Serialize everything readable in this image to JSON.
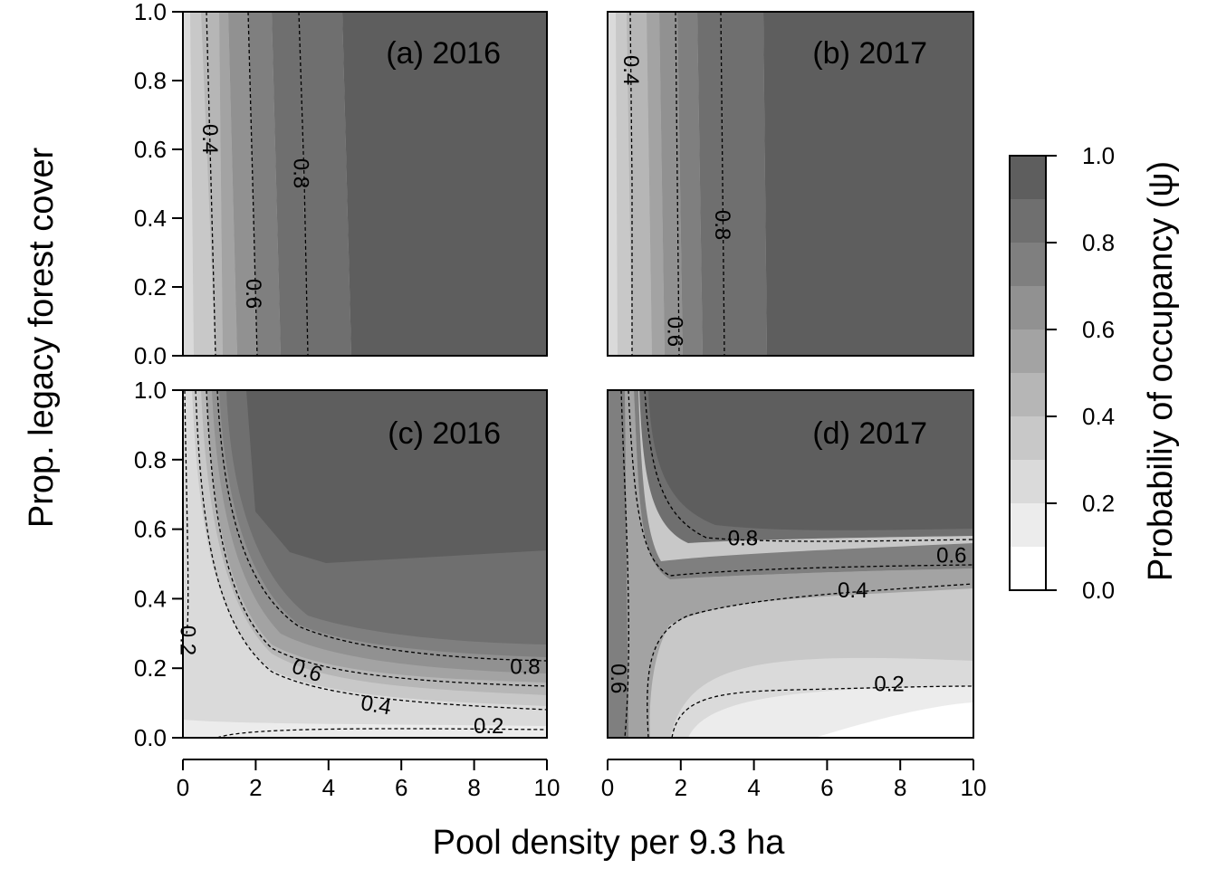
{
  "chart_data": {
    "type": "heatmap",
    "xlabel": "Pool density per 9.3 ha",
    "ylabel": "Prop. legacy forest cover",
    "xlim": [
      0,
      10
    ],
    "ylim": [
      0,
      1
    ],
    "x_ticks": [
      "0",
      "2",
      "4",
      "6",
      "8",
      "10"
    ],
    "y_ticks": [
      "0.0",
      "0.2",
      "0.4",
      "0.6",
      "0.8",
      "1.0"
    ],
    "colorbar": {
      "title": "Probabiliy of occupancy (ψ)",
      "tick_labels": [
        "0.0",
        "0.2",
        "0.4",
        "0.6",
        "0.8",
        "1.0"
      ],
      "levels": [
        0,
        0.1,
        0.2,
        0.3,
        0.4,
        0.5,
        0.6,
        0.7,
        0.8,
        0.9,
        1.0
      ],
      "colors": [
        "#ffffff",
        "#ececec",
        "#dadada",
        "#c8c8c8",
        "#b6b6b6",
        "#a3a3a3",
        "#919191",
        "#7f7f7f",
        "#6f6f6f",
        "#5e5e5e"
      ]
    },
    "panels": [
      {
        "title": "(a) 2016",
        "contour_labels": [
          {
            "text": "0.4",
            "x": 0.7,
            "y": 0.63,
            "angle": 90
          },
          {
            "text": "0.6",
            "x": 1.9,
            "y": 0.18,
            "angle": 90
          },
          {
            "text": "0.8",
            "x": 3.2,
            "y": 0.53,
            "angle": 90
          }
        ]
      },
      {
        "title": "(b) 2017",
        "contour_labels": [
          {
            "text": "0.4",
            "x": 0.6,
            "y": 0.83,
            "angle": 90
          },
          {
            "text": "0.6",
            "x": 1.8,
            "y": 0.07,
            "angle": 90
          },
          {
            "text": "0.8",
            "x": 3.1,
            "y": 0.38,
            "angle": 90
          }
        ]
      },
      {
        "title": "(c) 2016",
        "contour_labels": [
          {
            "text": "0.2",
            "x": 0.1,
            "y": 0.28,
            "angle": 90
          },
          {
            "text": "0.6",
            "x": 3.4,
            "y": 0.19,
            "angle": 20
          },
          {
            "text": "0.4",
            "x": 5.3,
            "y": 0.09,
            "angle": 10
          },
          {
            "text": "0.8",
            "x": 9.4,
            "y": 0.2,
            "angle": 0
          },
          {
            "text": "0.2",
            "x": 8.4,
            "y": 0.03,
            "angle": 0
          }
        ]
      },
      {
        "title": "(d) 2017",
        "contour_labels": [
          {
            "text": "0.6",
            "x": 0.25,
            "y": 0.17,
            "angle": 90
          },
          {
            "text": "0.8",
            "x": 3.7,
            "y": 0.57,
            "angle": 0
          },
          {
            "text": "0.6",
            "x": 9.4,
            "y": 0.52,
            "angle": 0
          },
          {
            "text": "0.4",
            "x": 6.7,
            "y": 0.42,
            "angle": 0
          },
          {
            "text": "0.2",
            "x": 7.7,
            "y": 0.15,
            "angle": 0
          }
        ]
      }
    ]
  }
}
